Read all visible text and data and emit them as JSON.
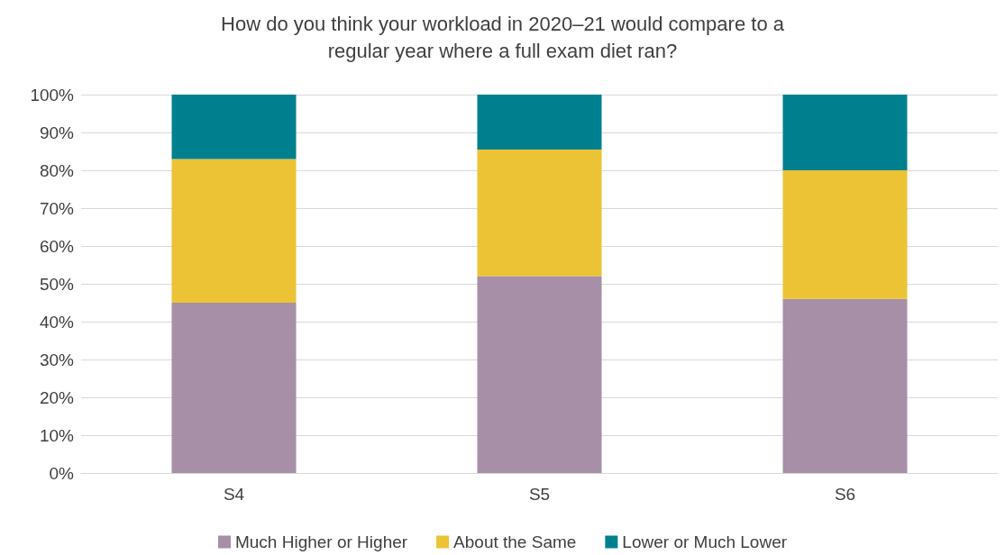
{
  "chart_data": {
    "type": "bar",
    "stacked": true,
    "title": "How do you think your workload in 2020–21 would compare to a\nregular year where a full exam diet ran?",
    "categories": [
      "S4",
      "S5",
      "S6"
    ],
    "series": [
      {
        "name": "Much Higher or Higher",
        "color": "#a68fa7",
        "values": [
          45,
          52,
          46
        ]
      },
      {
        "name": "About the Same",
        "color": "#ebc335",
        "values": [
          38,
          33.5,
          34
        ]
      },
      {
        "name": "Lower or Much Lower",
        "color": "#00808f",
        "values": [
          17,
          14.5,
          20
        ]
      }
    ],
    "ylim": [
      0,
      100
    ],
    "yticks": [
      {
        "value": 0,
        "label": "0%"
      },
      {
        "value": 10,
        "label": "10%"
      },
      {
        "value": 20,
        "label": "20%"
      },
      {
        "value": 30,
        "label": "30%"
      },
      {
        "value": 40,
        "label": "40%"
      },
      {
        "value": 50,
        "label": "50%"
      },
      {
        "value": 60,
        "label": "60%"
      },
      {
        "value": 70,
        "label": "70%"
      },
      {
        "value": 80,
        "label": "80%"
      },
      {
        "value": 90,
        "label": "90%"
      },
      {
        "value": 100,
        "label": "100%"
      }
    ],
    "grid": "y",
    "legend": "bottom"
  }
}
